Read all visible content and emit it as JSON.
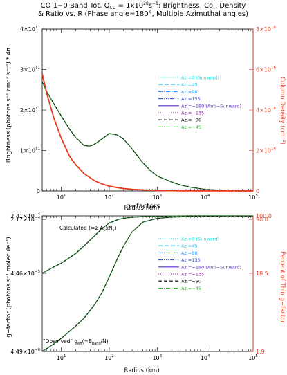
{
  "figure": {
    "title_line1": "CO 1−0 Band Tot.  Q",
    "title_q_sub": "CO",
    "title_q_eq": " = 1x10",
    "title_q_exp": "28",
    "title_q_unit": "s",
    "title_q_unit_exp": "−1",
    "title_line1_tail": ": Brightness, Col. Density",
    "title_line2": "& Ratio vs. R (Phase angle=180°,  Multiple Azimuthal angles)"
  },
  "colors": {
    "axis": "#000000",
    "right_axis": "#e8412a",
    "column_density_curve": "#e83a1a",
    "brightness_curve": "#2e7d32",
    "legend_az0": "#00e5e5",
    "legend_az45": "#31c4ee",
    "legend_az90": "#1e90ff",
    "legend_az135": "#2e50d8",
    "legend_az180": "#5b2bc9",
    "legend_azm135": "#8a1cb0",
    "legend_azm90": "#000000",
    "legend_azm45": "#22c022"
  },
  "chart_data": [
    {
      "type": "line",
      "xlabel": "Radius (km)",
      "ylabel": "Brightness (photons s⁻¹ cm⁻² sr⁻¹) * 4π",
      "y2label": "Column Density (cm⁻²)",
      "x_scale": "log",
      "xlim": [
        4,
        100000
      ],
      "ylim": [
        0,
        400000000000
      ],
      "y2lim": [
        0,
        80000000000000000
      ],
      "x_ticks": [
        {
          "value": 10,
          "base": "10",
          "exp": "1"
        },
        {
          "value": 100,
          "base": "10",
          "exp": "2"
        },
        {
          "value": 1000,
          "base": "10",
          "exp": "3"
        },
        {
          "value": 10000,
          "base": "10",
          "exp": "4"
        },
        {
          "value": 100000,
          "base": "10",
          "exp": "5"
        }
      ],
      "y_ticks": [
        {
          "value": 0,
          "base": "0",
          "exp": ""
        },
        {
          "value": 100000000000,
          "base": "1×10",
          "exp": "11"
        },
        {
          "value": 200000000000,
          "base": "2×10",
          "exp": "11"
        },
        {
          "value": 300000000000,
          "base": "3×10",
          "exp": "11"
        },
        {
          "value": 400000000000,
          "base": "4×10",
          "exp": "11"
        }
      ],
      "y2_ticks": [
        {
          "value": 0,
          "base": "0",
          "exp": ""
        },
        {
          "value": 20000000000000000,
          "base": "2×10",
          "exp": "16"
        },
        {
          "value": 40000000000000000,
          "base": "4×10",
          "exp": "16"
        },
        {
          "value": 60000000000000000,
          "base": "6×10",
          "exp": "16"
        },
        {
          "value": 80000000000000000,
          "base": "8×10",
          "exp": "16"
        }
      ],
      "legend": [
        {
          "name": "Az.=0 (Sunward)",
          "color_key": "legend_az0",
          "dash": "1,2"
        },
        {
          "name": "Az.=45",
          "color_key": "legend_az45",
          "dash": "6,3"
        },
        {
          "name": "Az.=90",
          "color_key": "legend_az90",
          "dash": "6,2,1,2"
        },
        {
          "name": "Az.=135",
          "color_key": "legend_az135",
          "dash": "6,2,1,2,1,2,1,2"
        },
        {
          "name": "Az.=−180 (Anti−Sunward)",
          "color_key": "legend_az180",
          "dash": ""
        },
        {
          "name": "Az.=−135",
          "color_key": "legend_azm135",
          "dash": "1,2"
        },
        {
          "name": "Az.=−90",
          "color_key": "legend_azm90",
          "dash": "5,3"
        },
        {
          "name": "Az.=−45",
          "color_key": "legend_azm45",
          "dash": "6,2,1,2"
        }
      ],
      "series": [
        {
          "name": "Brightness",
          "color_key": "brightness_curve",
          "axis": "left",
          "x": [
            4,
            5,
            7,
            10,
            15,
            20,
            30,
            40,
            50,
            70,
            100,
            150,
            200,
            300,
            500,
            700,
            1000,
            2000,
            3000,
            5000,
            10000,
            20000,
            50000,
            100000
          ],
          "y": [
            270000000000,
            245000000000,
            215000000000,
            185000000000,
            152000000000,
            132000000000,
            112000000000,
            111000000000,
            116000000000,
            128000000000,
            142000000000,
            138000000000,
            128000000000,
            104000000000,
            70000000000,
            52000000000,
            37000000000,
            22000000000,
            15000000000,
            9000000000,
            4000000000,
            2000000000,
            700000000,
            200000000
          ]
        },
        {
          "name": "Column Density",
          "color_key": "column_density_curve",
          "axis": "right",
          "x": [
            4,
            5,
            7,
            10,
            15,
            20,
            30,
            50,
            70,
            100,
            150,
            200,
            300,
            500,
            1000,
            2000,
            5000,
            10000,
            100000
          ],
          "y": [
            58000000000000000,
            48000000000000000,
            36000000000000000,
            26000000000000000,
            17000000000000000,
            13000000000000000,
            8500000000000000,
            5000000000000000,
            3500000000000000,
            2400000000000000,
            1600000000000000,
            1200000000000000,
            800000000000000,
            500000000000000,
            250000000000000,
            120000000000000,
            50000000000000,
            25000000000000,
            2500000000000
          ]
        }
      ]
    },
    {
      "type": "line",
      "title": "g−factors",
      "xlabel": "Radius (km)",
      "ylabel": "g−factor (photons s⁻¹ molecule⁻¹)",
      "y2label": "Percent of Thin g−factor",
      "x_scale": "log",
      "y_scale": "log",
      "xlim": [
        4,
        100000
      ],
      "ylim": [
        4.49e-06,
        0.000241
      ],
      "annotation_calculated": "Calculated  (=Σ A",
      "annotation_calculated_sub1": "v",
      "annotation_calculated_mid": "xN",
      "annotation_calculated_sub2": "v",
      "annotation_calculated_end": ")",
      "annotation_observed": "\"Observed\" g",
      "annotation_observed_sub": "eff",
      "annotation_observed_mid": "(=B",
      "annotation_observed_sub2": "band",
      "annotation_observed_end": "/N)",
      "x_ticks": [
        {
          "value": 10,
          "base": "10",
          "exp": "1"
        },
        {
          "value": 100,
          "base": "10",
          "exp": "2"
        },
        {
          "value": 1000,
          "base": "10",
          "exp": "3"
        },
        {
          "value": 10000,
          "base": "10",
          "exp": "4"
        },
        {
          "value": 100000,
          "base": "10",
          "exp": "5"
        }
      ],
      "y_ticks": [
        {
          "value": 0.000241,
          "base": "2.41×10",
          "exp": "−4"
        },
        {
          "value": 0.000217,
          "base": "2.17×10",
          "exp": "−4"
        },
        {
          "value": 4.46e-05,
          "base": "4.46×10",
          "exp": "−5"
        },
        {
          "value": 4.49e-06,
          "base": "4.49×10",
          "exp": "−6"
        }
      ],
      "y2_ticks": [
        {
          "value": 0.000241,
          "label": "100.0"
        },
        {
          "value": 0.000217,
          "label": "90.0"
        },
        {
          "value": 4.46e-05,
          "label": "18.5"
        },
        {
          "value": 4.49e-06,
          "label": "1.9"
        }
      ],
      "legend": [
        {
          "name": "Az.=0 (Sunward)",
          "color_key": "legend_az0",
          "dash": "1,2"
        },
        {
          "name": "Az.=45",
          "color_key": "legend_az45",
          "dash": "6,3"
        },
        {
          "name": "Az.=90",
          "color_key": "legend_az90",
          "dash": "6,2,1,2"
        },
        {
          "name": "Az.=135",
          "color_key": "legend_az135",
          "dash": "6,2,1,2,1,2,1,2"
        },
        {
          "name": "Az.=−180 (Anti−Sunward)",
          "color_key": "legend_az180",
          "dash": ""
        },
        {
          "name": "Az.=−135",
          "color_key": "legend_azm135",
          "dash": "1,2"
        },
        {
          "name": "Az.=−90",
          "color_key": "legend_azm90",
          "dash": "5,3"
        },
        {
          "name": "Az.=−45",
          "color_key": "legend_azm45",
          "dash": "6,2,1,2"
        }
      ],
      "series": [
        {
          "name": "Calculated",
          "color_key": "brightness_curve",
          "x": [
            4,
            7,
            10,
            20,
            30,
            50,
            70,
            100,
            150,
            200,
            300,
            500,
            1000,
            2000,
            5000,
            100000
          ],
          "y": [
            4.46e-05,
            5.4e-05,
            6e-05,
            8e-05,
            0.0001,
            0.000135,
            0.000165,
            0.000195,
            0.000215,
            0.000225,
            0.000231,
            0.000235,
            0.000238,
            0.00024,
            0.000241,
            0.000241
          ]
        },
        {
          "name": "Observed",
          "color_key": "brightness_curve",
          "x": [
            4,
            7,
            10,
            20,
            30,
            50,
            70,
            100,
            150,
            200,
            300,
            500,
            1000,
            2000,
            5000,
            10000,
            100000
          ],
          "y": [
            4.49e-06,
            5.6e-06,
            6.6e-06,
            9.5e-06,
            1.2e-05,
            1.8e-05,
            2.5e-05,
            4e-05,
            7e-05,
            0.0001,
            0.00015,
            0.0002,
            0.000224,
            0.000232,
            0.000237,
            0.000239,
            0.00024
          ]
        }
      ]
    }
  ]
}
